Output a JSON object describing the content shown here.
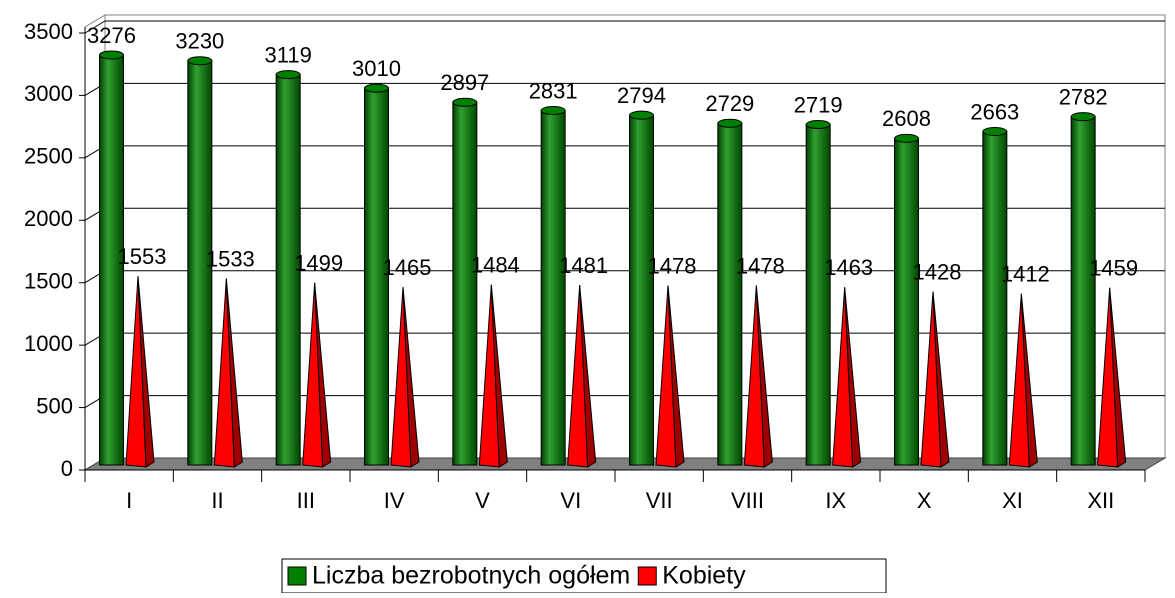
{
  "chart_data": {
    "type": "bar3d",
    "categories": [
      "I",
      "II",
      "III",
      "IV",
      "V",
      "VI",
      "VII",
      "VIII",
      "IX",
      "X",
      "XI",
      "XII"
    ],
    "series": [
      {
        "name": "Liczba bezrobotnych ogółem",
        "color": "#008000",
        "shape": "cylinder",
        "values": [
          3276,
          3230,
          3119,
          3010,
          2897,
          2831,
          2794,
          2729,
          2719,
          2608,
          2663,
          2782
        ]
      },
      {
        "name": "Kobiety",
        "color": "#ff0000",
        "shape": "cone",
        "values": [
          1553,
          1533,
          1499,
          1465,
          1484,
          1481,
          1478,
          1478,
          1463,
          1428,
          1412,
          1459
        ]
      }
    ],
    "ylim": [
      0,
      3500
    ],
    "yticks": [
      0,
      500,
      1000,
      1500,
      2000,
      2500,
      3000,
      3500
    ],
    "grid": true,
    "legend": "bottom"
  }
}
